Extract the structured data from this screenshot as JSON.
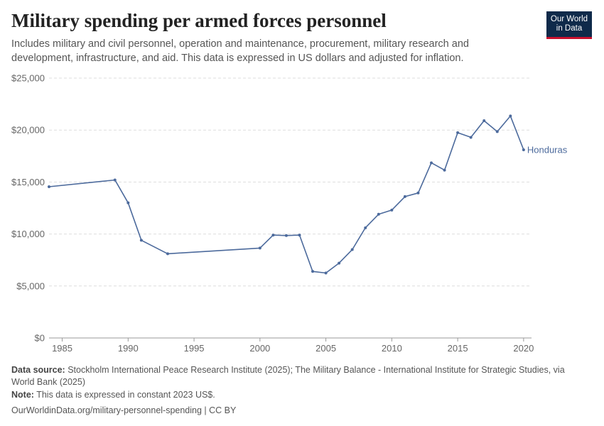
{
  "header": {
    "title": "Military spending per armed forces personnel",
    "subtitle": "Includes military and civil personnel, operation and maintenance, procurement, military research and development, infrastructure, and aid. This data is expressed in US dollars and adjusted for inflation."
  },
  "logo": {
    "line1": "Our World",
    "line2": "in Data"
  },
  "footer": {
    "source_label": "Data source:",
    "source_text": "Stockholm International Peace Research Institute (2025); The Military Balance - International Institute for Strategic Studies, via World Bank (2025)",
    "note_label": "Note:",
    "note_text": "This data is expressed in constant 2023 US$.",
    "url": "OurWorldinData.org/military-personnel-spending | CC BY"
  },
  "colors": {
    "series": "#4c6a9c",
    "grid": "#dddddd",
    "text": "#666666"
  },
  "chart_data": {
    "type": "line",
    "title": "Military spending per armed forces personnel",
    "xlabel": "",
    "ylabel": "",
    "xlim": [
      1984,
      2020.6
    ],
    "ylim": [
      0,
      25000
    ],
    "x_ticks": [
      1985,
      1990,
      1995,
      2000,
      2005,
      2010,
      2015,
      2020
    ],
    "y_ticks": [
      0,
      5000,
      10000,
      15000,
      20000,
      25000
    ],
    "y_tick_labels": [
      "$0",
      "$5,000",
      "$10,000",
      "$15,000",
      "$20,000",
      "$25,000"
    ],
    "grid": "horizontal dashed",
    "series": [
      {
        "name": "Honduras",
        "color": "#4c6a9c",
        "points": [
          [
            1984,
            14550
          ],
          [
            1989,
            15200
          ],
          [
            1990,
            13000
          ],
          [
            1991,
            9400
          ],
          [
            1993,
            8100
          ],
          [
            2000,
            8650
          ],
          [
            2001,
            9900
          ],
          [
            2002,
            9850
          ],
          [
            2003,
            9900
          ],
          [
            2004,
            6400
          ],
          [
            2005,
            6250
          ],
          [
            2006,
            7200
          ],
          [
            2007,
            8500
          ],
          [
            2008,
            10600
          ],
          [
            2009,
            11900
          ],
          [
            2010,
            12300
          ],
          [
            2011,
            13600
          ],
          [
            2012,
            13950
          ],
          [
            2013,
            16850
          ],
          [
            2014,
            16150
          ],
          [
            2015,
            19750
          ],
          [
            2016,
            19300
          ],
          [
            2017,
            20900
          ],
          [
            2018,
            19850
          ],
          [
            2019,
            21350
          ],
          [
            2020,
            18100
          ]
        ]
      }
    ]
  }
}
